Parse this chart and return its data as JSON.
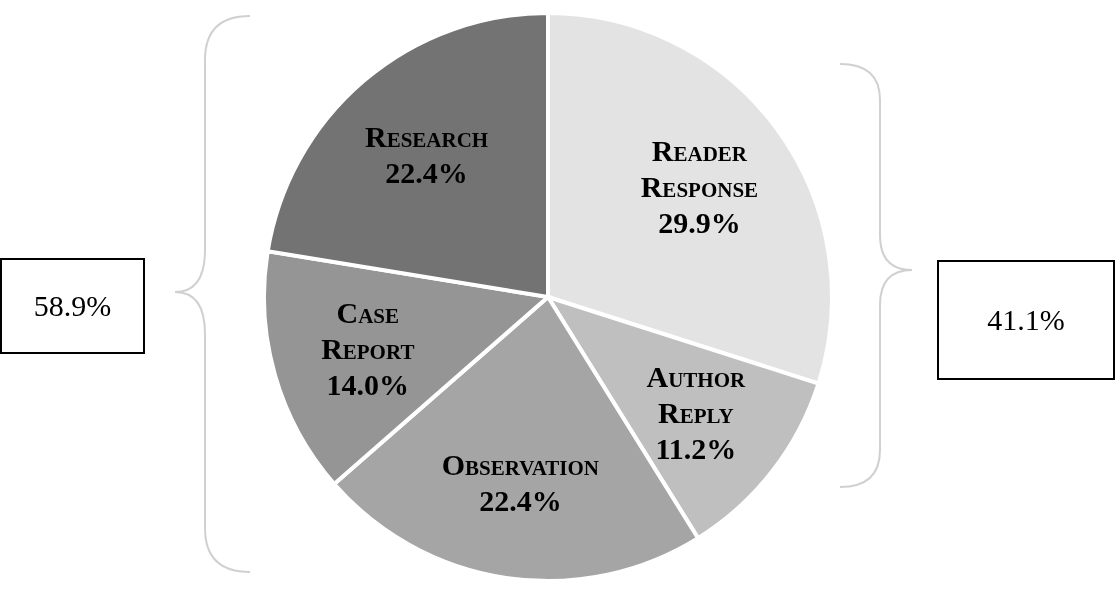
{
  "chart_data": {
    "type": "pie",
    "categories": [
      "Reader Response",
      "Author Reply",
      "Observation",
      "Case Report",
      "Research"
    ],
    "values": [
      29.9,
      11.2,
      22.4,
      14.0,
      22.4
    ],
    "value_labels": [
      "29.9%",
      "11.2%",
      "22.4%",
      "14.0%",
      "22.4%"
    ],
    "colors": [
      "#e3e3e3",
      "#bfbfbf",
      "#a5a5a5",
      "#959595",
      "#737373"
    ],
    "annotations": [
      "58.9%",
      "41.1%"
    ]
  }
}
